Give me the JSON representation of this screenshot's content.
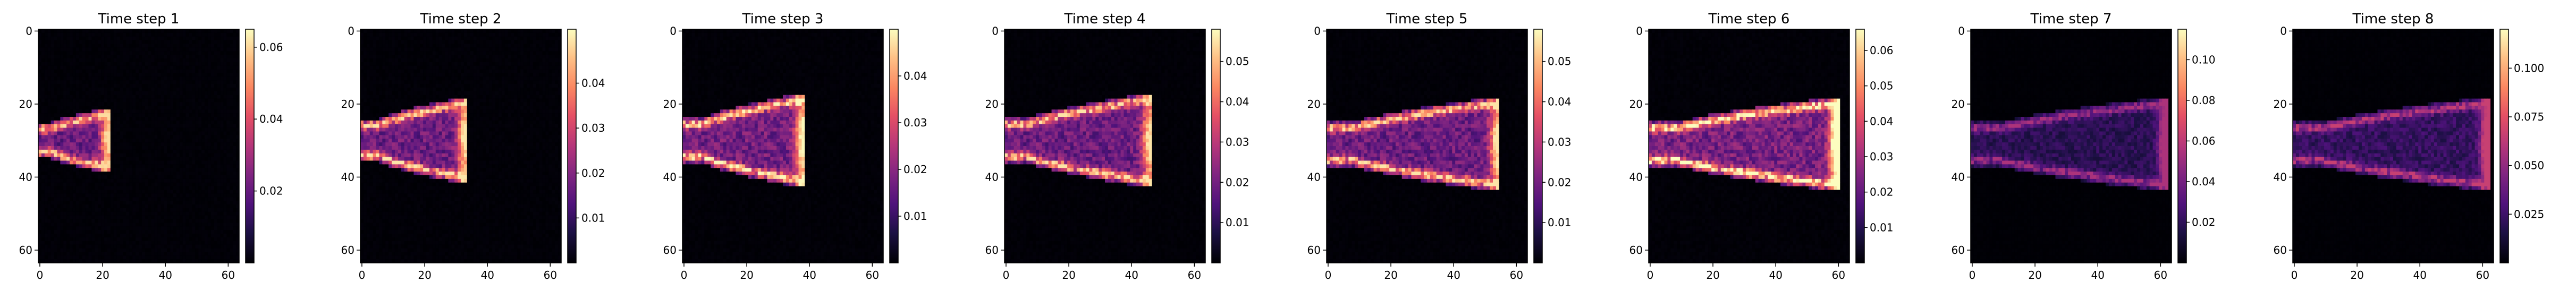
{
  "chart_data": [
    {
      "type": "heatmap",
      "title": "Time step 1",
      "x_ticks": [
        0,
        20,
        40,
        60
      ],
      "y_ticks": [
        0,
        20,
        40,
        60
      ],
      "xlim": [
        0,
        63
      ],
      "ylim": [
        63,
        0
      ],
      "grid": false,
      "colorbar": {
        "colormap": "magma",
        "min": 0.0,
        "max": 0.065,
        "ticks": [
          0.02,
          0.04,
          0.06
        ],
        "tick_labels": [
          "0.02",
          "0.04",
          "0.06"
        ]
      },
      "plume": {
        "source_y": 30,
        "tip_x": 22,
        "half_width": 6,
        "peak": 0.055,
        "hot_tip": false
      }
    },
    {
      "type": "heatmap",
      "title": "Time step 2",
      "x_ticks": [
        0,
        20,
        40,
        60
      ],
      "y_ticks": [
        0,
        20,
        40,
        60
      ],
      "xlim": [
        0,
        63
      ],
      "ylim": [
        63,
        0
      ],
      "grid": false,
      "colorbar": {
        "colormap": "magma",
        "min": 0.0,
        "max": 0.052,
        "ticks": [
          0.01,
          0.02,
          0.03,
          0.04
        ],
        "tick_labels": [
          "0.01",
          "0.02",
          "0.03",
          "0.04"
        ]
      },
      "plume": {
        "source_y": 30,
        "tip_x": 33,
        "half_width": 9,
        "peak": 0.045,
        "hot_tip": false
      }
    },
    {
      "type": "heatmap",
      "title": "Time step 3",
      "x_ticks": [
        0,
        20,
        40,
        60
      ],
      "y_ticks": [
        0,
        20,
        40,
        60
      ],
      "xlim": [
        0,
        63
      ],
      "ylim": [
        63,
        0
      ],
      "grid": false,
      "colorbar": {
        "colormap": "magma",
        "min": 0.0,
        "max": 0.05,
        "ticks": [
          0.01,
          0.02,
          0.03,
          0.04
        ],
        "tick_labels": [
          "0.01",
          "0.02",
          "0.03",
          "0.04"
        ]
      },
      "plume": {
        "source_y": 30,
        "tip_x": 38,
        "half_width": 10,
        "peak": 0.045,
        "hot_tip": false
      }
    },
    {
      "type": "heatmap",
      "title": "Time step 4",
      "x_ticks": [
        0,
        20,
        40,
        60
      ],
      "y_ticks": [
        0,
        20,
        40,
        60
      ],
      "xlim": [
        0,
        63
      ],
      "ylim": [
        63,
        0
      ],
      "grid": false,
      "colorbar": {
        "colormap": "magma",
        "min": 0.0,
        "max": 0.058,
        "ticks": [
          0.01,
          0.02,
          0.03,
          0.04,
          0.05
        ],
        "tick_labels": [
          "0.01",
          "0.02",
          "0.03",
          "0.04",
          "0.05"
        ]
      },
      "plume": {
        "source_y": 30,
        "tip_x": 46,
        "half_width": 10,
        "peak": 0.05,
        "hot_tip": false
      }
    },
    {
      "type": "heatmap",
      "title": "Time step 5",
      "x_ticks": [
        0,
        20,
        40,
        60
      ],
      "y_ticks": [
        0,
        20,
        40,
        60
      ],
      "xlim": [
        0,
        63
      ],
      "ylim": [
        63,
        0
      ],
      "grid": false,
      "colorbar": {
        "colormap": "magma",
        "min": 0.0,
        "max": 0.058,
        "ticks": [
          0.01,
          0.02,
          0.03,
          0.04,
          0.05
        ],
        "tick_labels": [
          "0.01",
          "0.02",
          "0.03",
          "0.04",
          "0.05"
        ]
      },
      "plume": {
        "source_y": 31,
        "tip_x": 54,
        "half_width": 10,
        "peak": 0.05,
        "hot_tip": false
      }
    },
    {
      "type": "heatmap",
      "title": "Time step 6",
      "x_ticks": [
        0,
        20,
        40,
        60
      ],
      "y_ticks": [
        0,
        20,
        40,
        60
      ],
      "xlim": [
        0,
        63
      ],
      "ylim": [
        63,
        0
      ],
      "grid": false,
      "colorbar": {
        "colormap": "magma",
        "min": 0.0,
        "max": 0.066,
        "ticks": [
          0.01,
          0.02,
          0.03,
          0.04,
          0.05,
          0.06
        ],
        "tick_labels": [
          "0.01",
          "0.02",
          "0.03",
          "0.04",
          "0.05",
          "0.06"
        ]
      },
      "plume": {
        "source_y": 31,
        "tip_x": 60,
        "half_width": 10,
        "peak": 0.062,
        "hot_tip": true
      }
    },
    {
      "type": "heatmap",
      "title": "Time step 7",
      "x_ticks": [
        0,
        20,
        40,
        60
      ],
      "y_ticks": [
        0,
        20,
        40,
        60
      ],
      "xlim": [
        0,
        63
      ],
      "ylim": [
        63,
        0
      ],
      "grid": false,
      "colorbar": {
        "colormap": "magma",
        "min": 0.0,
        "max": 0.115,
        "ticks": [
          0.02,
          0.04,
          0.06,
          0.08,
          0.1
        ],
        "tick_labels": [
          "0.02",
          "0.04",
          "0.06",
          "0.08",
          "0.10"
        ]
      },
      "plume": {
        "source_y": 31,
        "tip_x": 62,
        "half_width": 10,
        "peak": 0.05,
        "hot_tip": true
      }
    },
    {
      "type": "heatmap",
      "title": "Time step 8",
      "x_ticks": [
        0,
        20,
        40,
        60
      ],
      "y_ticks": [
        0,
        20,
        40,
        60
      ],
      "xlim": [
        0,
        63
      ],
      "ylim": [
        63,
        0
      ],
      "grid": false,
      "colorbar": {
        "colormap": "magma",
        "min": 0.0,
        "max": 0.12,
        "ticks": [
          0.025,
          0.05,
          0.075,
          0.1
        ],
        "tick_labels": [
          "0.025",
          "0.050",
          "0.075",
          "0.100"
        ]
      },
      "plume": {
        "source_y": 31,
        "tip_x": 62,
        "half_width": 10,
        "peak": 0.06,
        "hot_tip": true
      }
    }
  ]
}
